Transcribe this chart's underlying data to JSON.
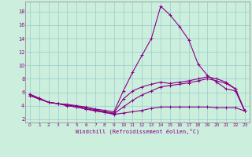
{
  "xlabel": "Windchill (Refroidissement éolien,°C)",
  "bg_color": "#cceedd",
  "line_color": "#880088",
  "grid_color": "#99cccc",
  "xlim": [
    -0.5,
    23.5
  ],
  "ylim": [
    1.5,
    19.5
  ],
  "yticks": [
    2,
    4,
    6,
    8,
    10,
    12,
    14,
    16,
    18
  ],
  "xticks": [
    0,
    1,
    2,
    3,
    4,
    5,
    6,
    7,
    8,
    9,
    10,
    11,
    12,
    13,
    14,
    15,
    16,
    17,
    18,
    19,
    20,
    21,
    22,
    23
  ],
  "line1_x": [
    0,
    1,
    2,
    3,
    4,
    5,
    6,
    7,
    8,
    9,
    10,
    11,
    12,
    13,
    14,
    15,
    16,
    17,
    18,
    19,
    20,
    21,
    22,
    23
  ],
  "line1_y": [
    5.7,
    5.1,
    4.5,
    4.3,
    4.2,
    4.0,
    3.8,
    3.5,
    3.3,
    3.1,
    6.2,
    9.0,
    11.5,
    14.0,
    18.8,
    17.5,
    15.8,
    13.8,
    10.2,
    8.5,
    7.5,
    6.5,
    6.2,
    3.2
  ],
  "line2_x": [
    0,
    1,
    2,
    3,
    4,
    5,
    6,
    7,
    8,
    9,
    10,
    11,
    12,
    13,
    14,
    15,
    16,
    17,
    18,
    19,
    20,
    21,
    22,
    23
  ],
  "line2_y": [
    5.7,
    5.1,
    4.5,
    4.3,
    4.0,
    3.8,
    3.5,
    3.2,
    3.0,
    2.7,
    2.9,
    3.1,
    3.3,
    3.6,
    3.8,
    3.8,
    3.8,
    3.8,
    3.8,
    3.8,
    3.7,
    3.7,
    3.7,
    3.2
  ],
  "line3_x": [
    0,
    1,
    2,
    3,
    4,
    5,
    6,
    7,
    8,
    9,
    10,
    11,
    12,
    13,
    14,
    15,
    16,
    17,
    18,
    19,
    20,
    21,
    22,
    23
  ],
  "line3_y": [
    5.5,
    5.0,
    4.5,
    4.3,
    4.0,
    3.8,
    3.5,
    3.3,
    3.0,
    2.8,
    3.8,
    4.8,
    5.6,
    6.2,
    6.8,
    7.0,
    7.2,
    7.4,
    7.7,
    8.0,
    7.7,
    7.3,
    6.5,
    3.2
  ],
  "line4_x": [
    0,
    1,
    2,
    3,
    4,
    5,
    6,
    7,
    8,
    9,
    10,
    11,
    12,
    13,
    14,
    15,
    16,
    17,
    18,
    19,
    20,
    21,
    22,
    23
  ],
  "line4_y": [
    5.5,
    5.0,
    4.5,
    4.3,
    4.1,
    3.9,
    3.7,
    3.4,
    3.1,
    2.9,
    5.0,
    6.2,
    6.8,
    7.2,
    7.5,
    7.3,
    7.5,
    7.7,
    8.0,
    8.3,
    8.0,
    7.5,
    6.5,
    3.2
  ]
}
